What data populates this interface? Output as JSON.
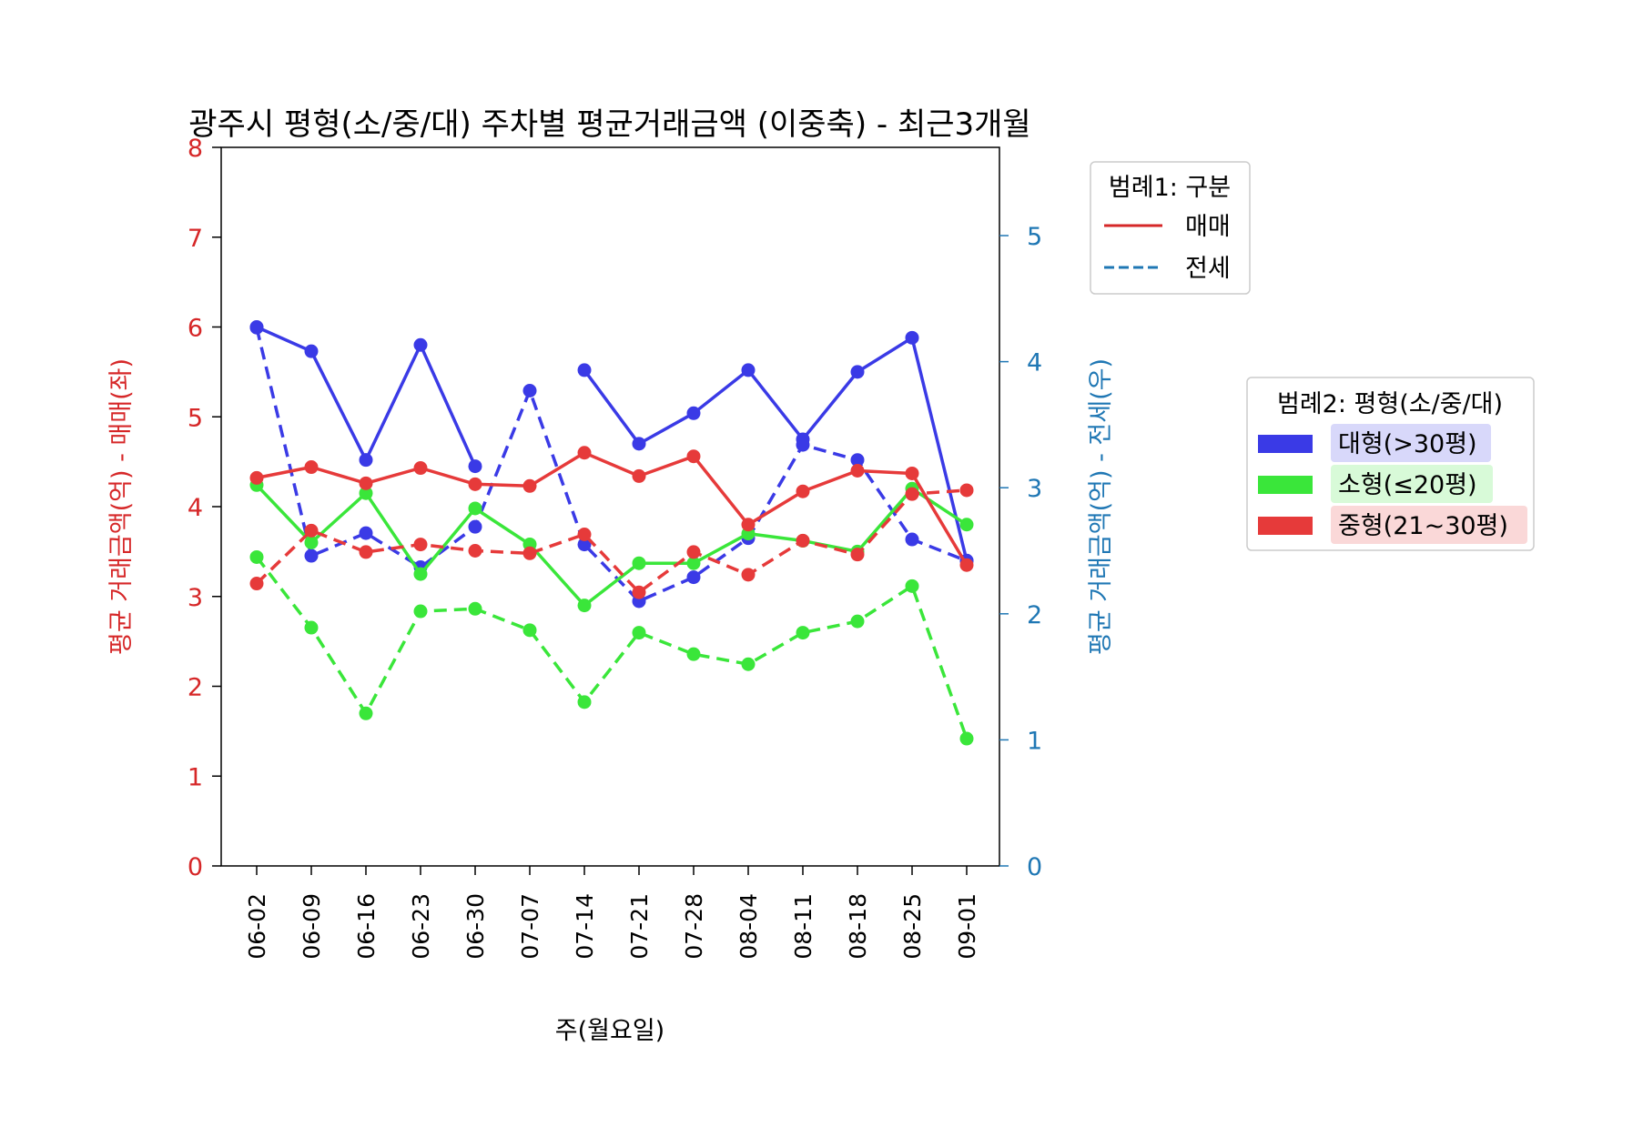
{
  "chart_data": {
    "type": "line",
    "title": "광주시 평형(소/중/대) 주차별 평균거래금액 (이중축) - 최근3개월",
    "xlabel": "주(월요일)",
    "ylabel_left": "평균 거래금액(억) - 매매(좌)",
    "ylabel_right": "평균 거래금액(억) - 전세(우)",
    "ylim_left": [
      0,
      8
    ],
    "ylim_right": [
      0,
      5.7
    ],
    "yticks_left": [
      "0",
      "1",
      "2",
      "3",
      "4",
      "5",
      "6",
      "7",
      "8"
    ],
    "yticks_right": [
      "0",
      "1",
      "2",
      "3",
      "4",
      "5"
    ],
    "categories": [
      "06-02",
      "06-09",
      "06-16",
      "06-23",
      "06-30",
      "07-07",
      "07-14",
      "07-21",
      "07-28",
      "08-04",
      "08-11",
      "08-18",
      "08-25",
      "09-01"
    ],
    "grid": false,
    "legend1": {
      "title": "범례1: 구분",
      "placement": "upper-right-outside",
      "items": [
        {
          "label": "매매",
          "style": "solid",
          "color": "#d62728"
        },
        {
          "label": "전세",
          "style": "dashed",
          "color": "#1f77b4"
        }
      ]
    },
    "legend2": {
      "title": "범례2: 평형(소/중/대)",
      "placement": "right-outside",
      "items": [
        {
          "label": "대형(>30평)",
          "color": "#3a3ae6",
          "bg": "#d8d8fa"
        },
        {
          "label": "소형(≤20평)",
          "color": "#3ae63a",
          "bg": "#d8fad8"
        },
        {
          "label": "중형(21~30평)",
          "color": "#e63a3a",
          "bg": "#fad8d8"
        }
      ]
    },
    "series": [
      {
        "name": "대형(>30평)",
        "kind": "매매",
        "axis": "left",
        "color": "#3a3ae6",
        "style": "solid",
        "values": [
          6.0,
          5.73,
          4.52,
          5.8,
          4.45,
          null,
          5.52,
          4.7,
          5.04,
          5.52,
          4.75,
          5.5,
          5.88,
          3.4
        ]
      },
      {
        "name": "대형(>30평)",
        "kind": "전세",
        "axis": "right",
        "color": "#3a3ae6",
        "style": "dashed",
        "values": [
          4.27,
          2.46,
          2.64,
          2.37,
          2.69,
          3.77,
          2.55,
          2.1,
          2.29,
          2.6,
          3.34,
          3.22,
          2.59,
          2.42
        ]
      },
      {
        "name": "소형(≤20평)",
        "kind": "매매",
        "axis": "left",
        "color": "#3ae63a",
        "style": "solid",
        "values": [
          4.24,
          3.6,
          4.15,
          3.25,
          3.98,
          3.58,
          2.9,
          3.37,
          3.37,
          3.7,
          3.62,
          3.5,
          4.2,
          3.8
        ]
      },
      {
        "name": "소형(≤20평)",
        "kind": "전세",
        "axis": "right",
        "color": "#3ae63a",
        "style": "dashed",
        "values": [
          2.45,
          1.89,
          1.21,
          2.02,
          2.04,
          1.87,
          1.3,
          1.85,
          1.68,
          1.6,
          1.85,
          1.94,
          2.22,
          1.01
        ]
      },
      {
        "name": "중형(21~30평)",
        "kind": "매매",
        "axis": "left",
        "color": "#e63a3a",
        "style": "solid",
        "values": [
          4.32,
          4.44,
          4.26,
          4.43,
          4.25,
          4.23,
          4.6,
          4.34,
          4.56,
          3.8,
          4.17,
          4.4,
          4.37,
          3.35
        ]
      },
      {
        "name": "중형(21~30평)",
        "kind": "전세",
        "axis": "right",
        "color": "#e63a3a",
        "style": "dashed",
        "values": [
          2.24,
          2.66,
          2.49,
          2.55,
          2.5,
          2.48,
          2.63,
          2.17,
          2.49,
          2.31,
          2.58,
          2.47,
          2.95,
          2.98
        ]
      }
    ]
  }
}
